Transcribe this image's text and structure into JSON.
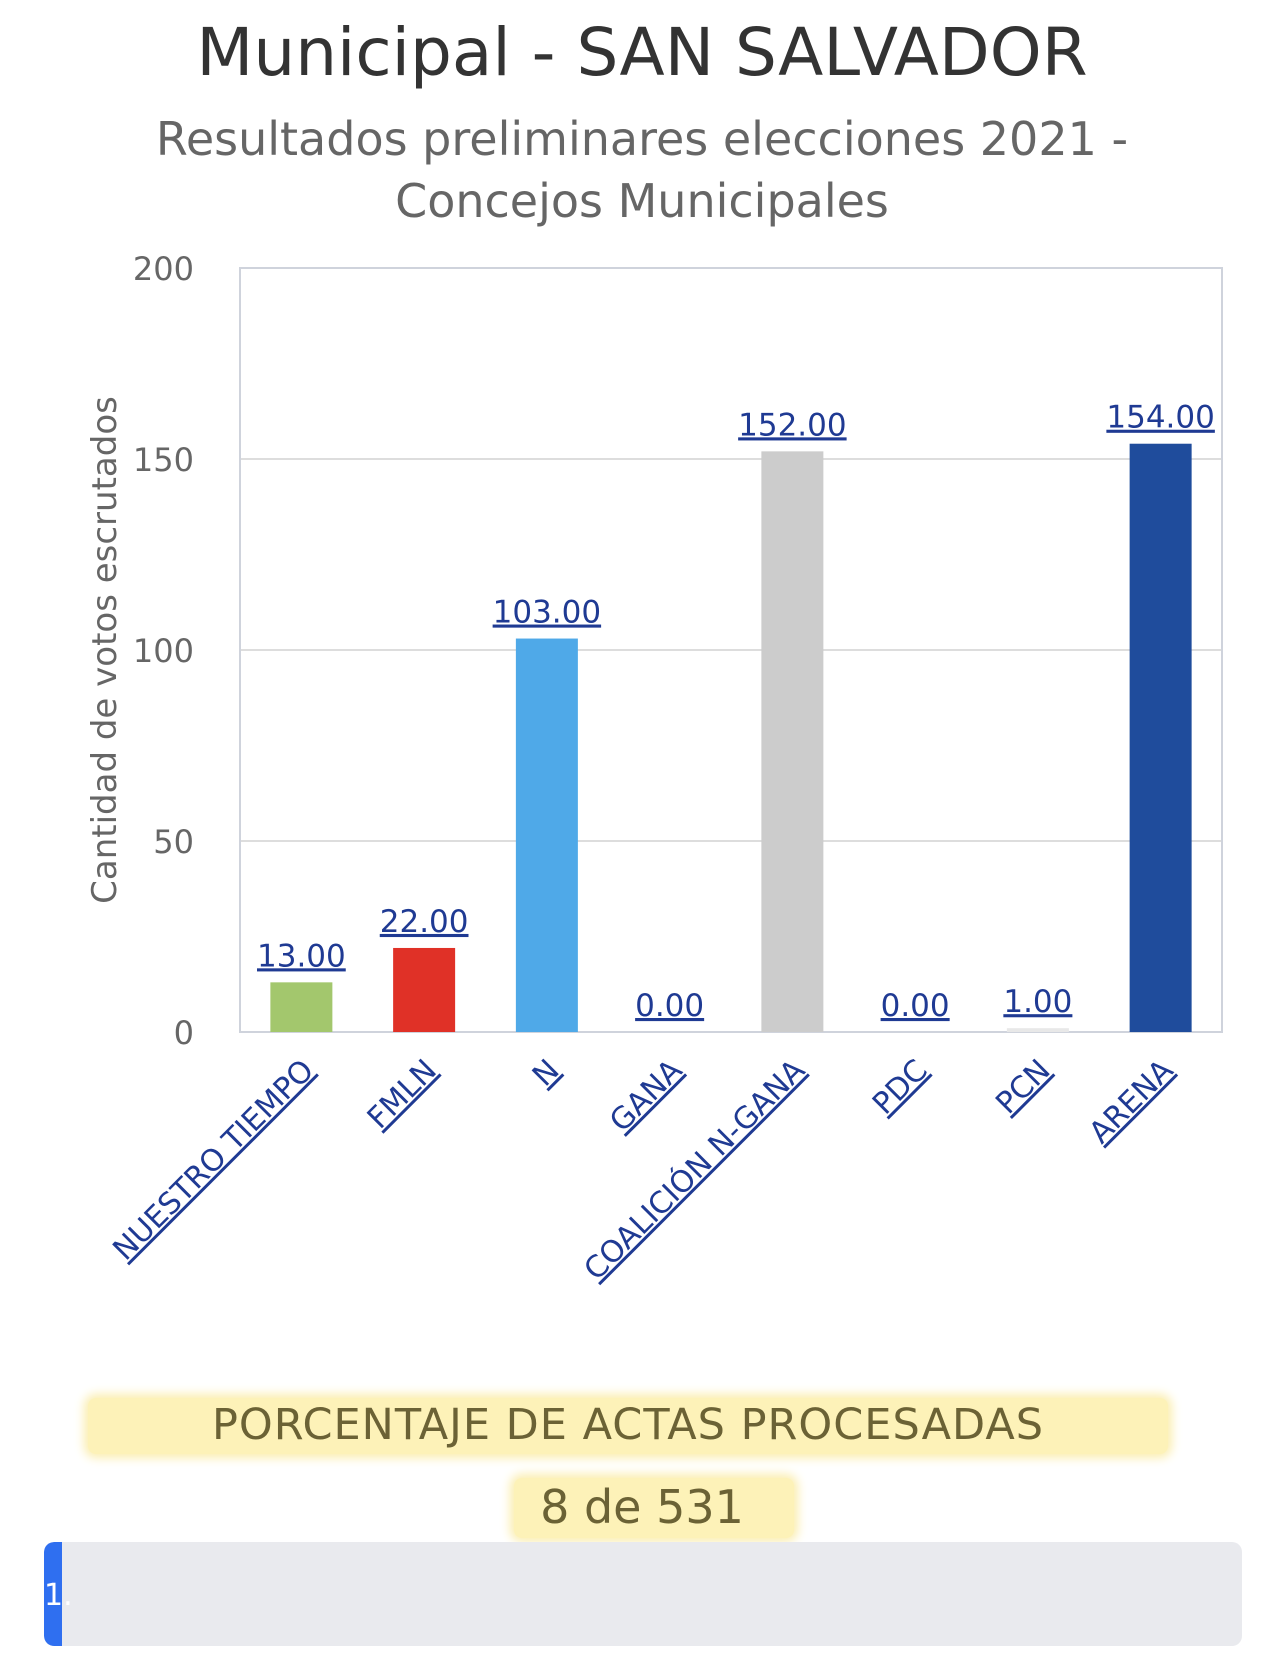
{
  "chart_data": {
    "type": "bar",
    "title": "Municipal - SAN SALVADOR",
    "subtitle": "Resultados preliminares elecciones 2021 - Concejos Municipales",
    "xlabel": "",
    "ylabel": "Cantidad de votos escrutados",
    "ylim": [
      0,
      200
    ],
    "yticks": [
      0,
      50,
      100,
      150,
      200
    ],
    "grid": true,
    "categories": [
      "NUESTRO TIEMPO",
      "FMLN",
      "N",
      "GANA",
      "COALICIÓN N-GANA",
      "PDC",
      "PCN",
      "ARENA"
    ],
    "values": [
      13,
      22,
      103,
      0,
      152,
      0,
      1,
      154
    ],
    "data_labels": [
      "13.00",
      "22.00",
      "103.00",
      "0.00",
      "152.00",
      "0.00",
      "1.00",
      "154.00"
    ],
    "colors": [
      "#a3c76d",
      "#e03127",
      "#4fa9e8",
      "#e8e8e8",
      "#cccccc",
      "#e8e8e8",
      "#e8e8e8",
      "#1f4c9c"
    ]
  },
  "footer": {
    "label": "PORCENTAJE DE ACTAS PROCESADAS",
    "count": "8 de 531"
  },
  "progress": {
    "percent": 1.5,
    "text": "1."
  },
  "colors": {
    "label_link": "#1f3a93",
    "axis_text": "#666666",
    "grid": "#dddddd",
    "highlight": "#fdf2b8"
  }
}
